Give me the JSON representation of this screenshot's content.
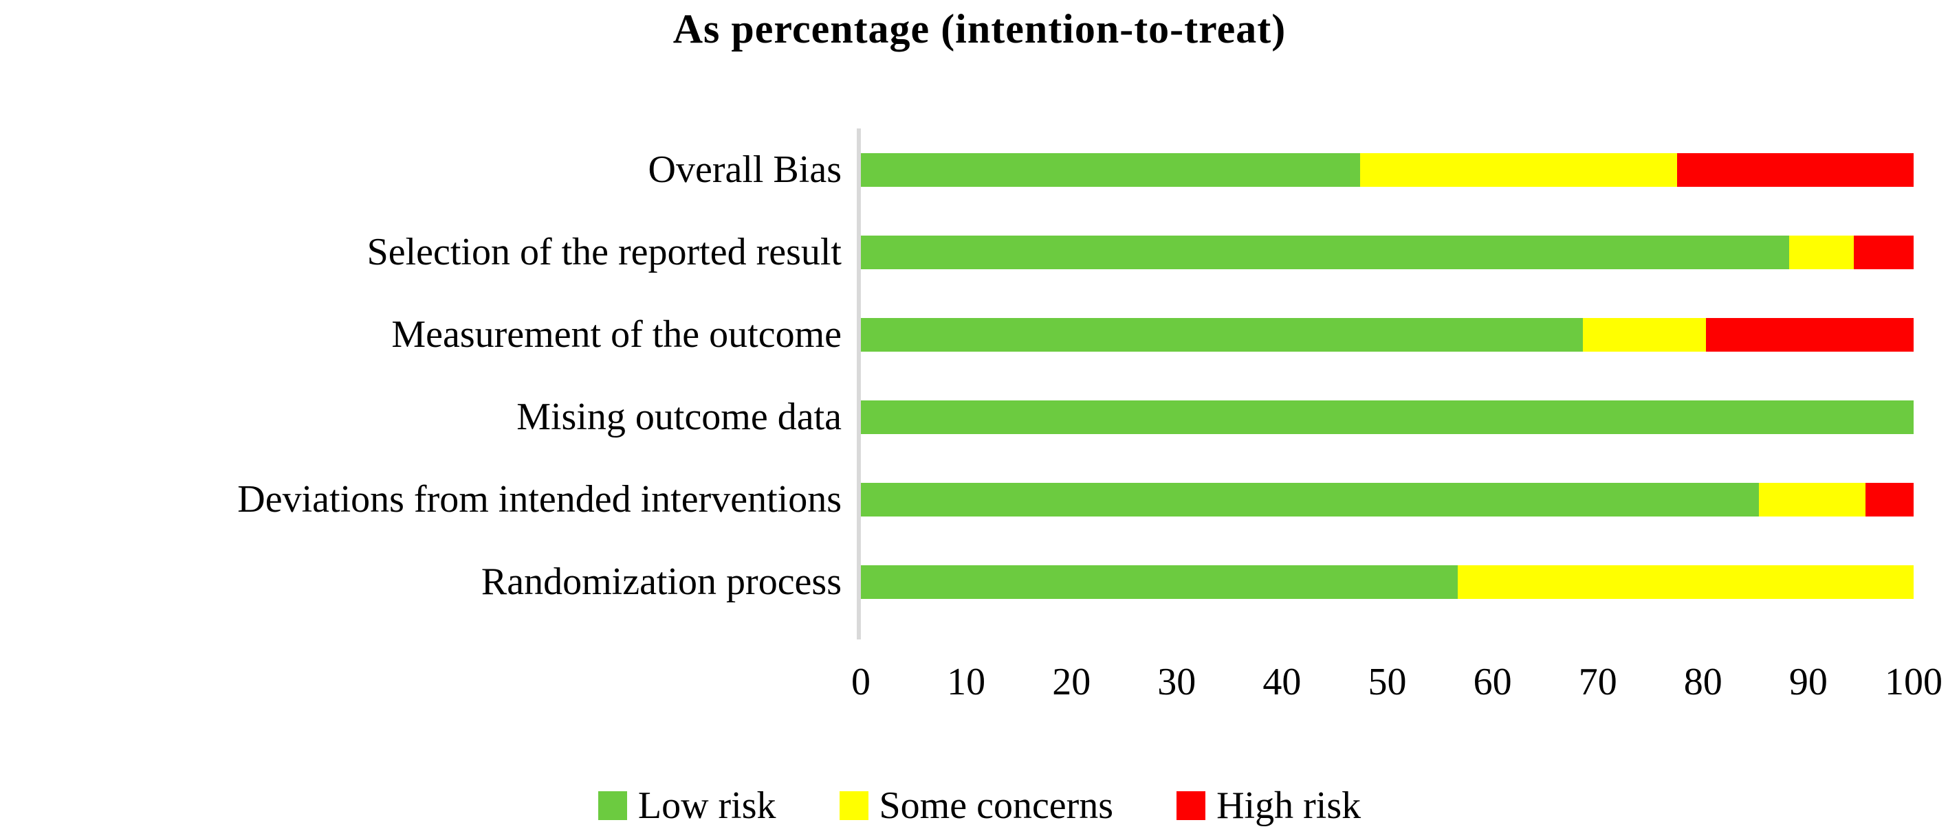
{
  "title": "As percentage (intention-to-treat)",
  "colors": {
    "low_risk": "#6CCB40",
    "some_concerns": "#FFFF00",
    "high_risk": "#FE0000",
    "axis_line": "#D9D9D9",
    "text": "#000000"
  },
  "legend": {
    "position": "bottom",
    "items": [
      {
        "label": "Low risk",
        "color": "#6CCB40"
      },
      {
        "label": "Some concerns",
        "color": "#FFFF00"
      },
      {
        "label": "High risk",
        "color": "#FE0000"
      }
    ]
  },
  "chart_data": {
    "type": "bar",
    "orientation": "horizontal",
    "stacked": true,
    "title": "As percentage (intention-to-treat)",
    "categories": [
      "Overall Bias",
      "Selection of the reported result",
      "Measurement of the outcome",
      "Mising outcome data",
      "Deviations from intended interventions",
      "Randomization process"
    ],
    "series": [
      {
        "name": "Low risk",
        "color": "#6CCB40",
        "values": [
          47.4,
          88.2,
          68.6,
          100,
          85.3,
          56.7
        ]
      },
      {
        "name": "Some concerns",
        "color": "#FFFF00",
        "values": [
          30.1,
          6.1,
          11.7,
          0,
          10.1,
          43.3
        ]
      },
      {
        "name": "High risk",
        "color": "#FE0000",
        "values": [
          22.5,
          5.7,
          19.7,
          0,
          4.6,
          0
        ]
      }
    ],
    "xlabel": "",
    "ylabel": "",
    "xlim": [
      0,
      100
    ],
    "x_ticks": [
      0,
      10,
      20,
      30,
      40,
      50,
      60,
      70,
      80,
      90,
      100
    ],
    "grid": false,
    "legend_position": "bottom"
  }
}
